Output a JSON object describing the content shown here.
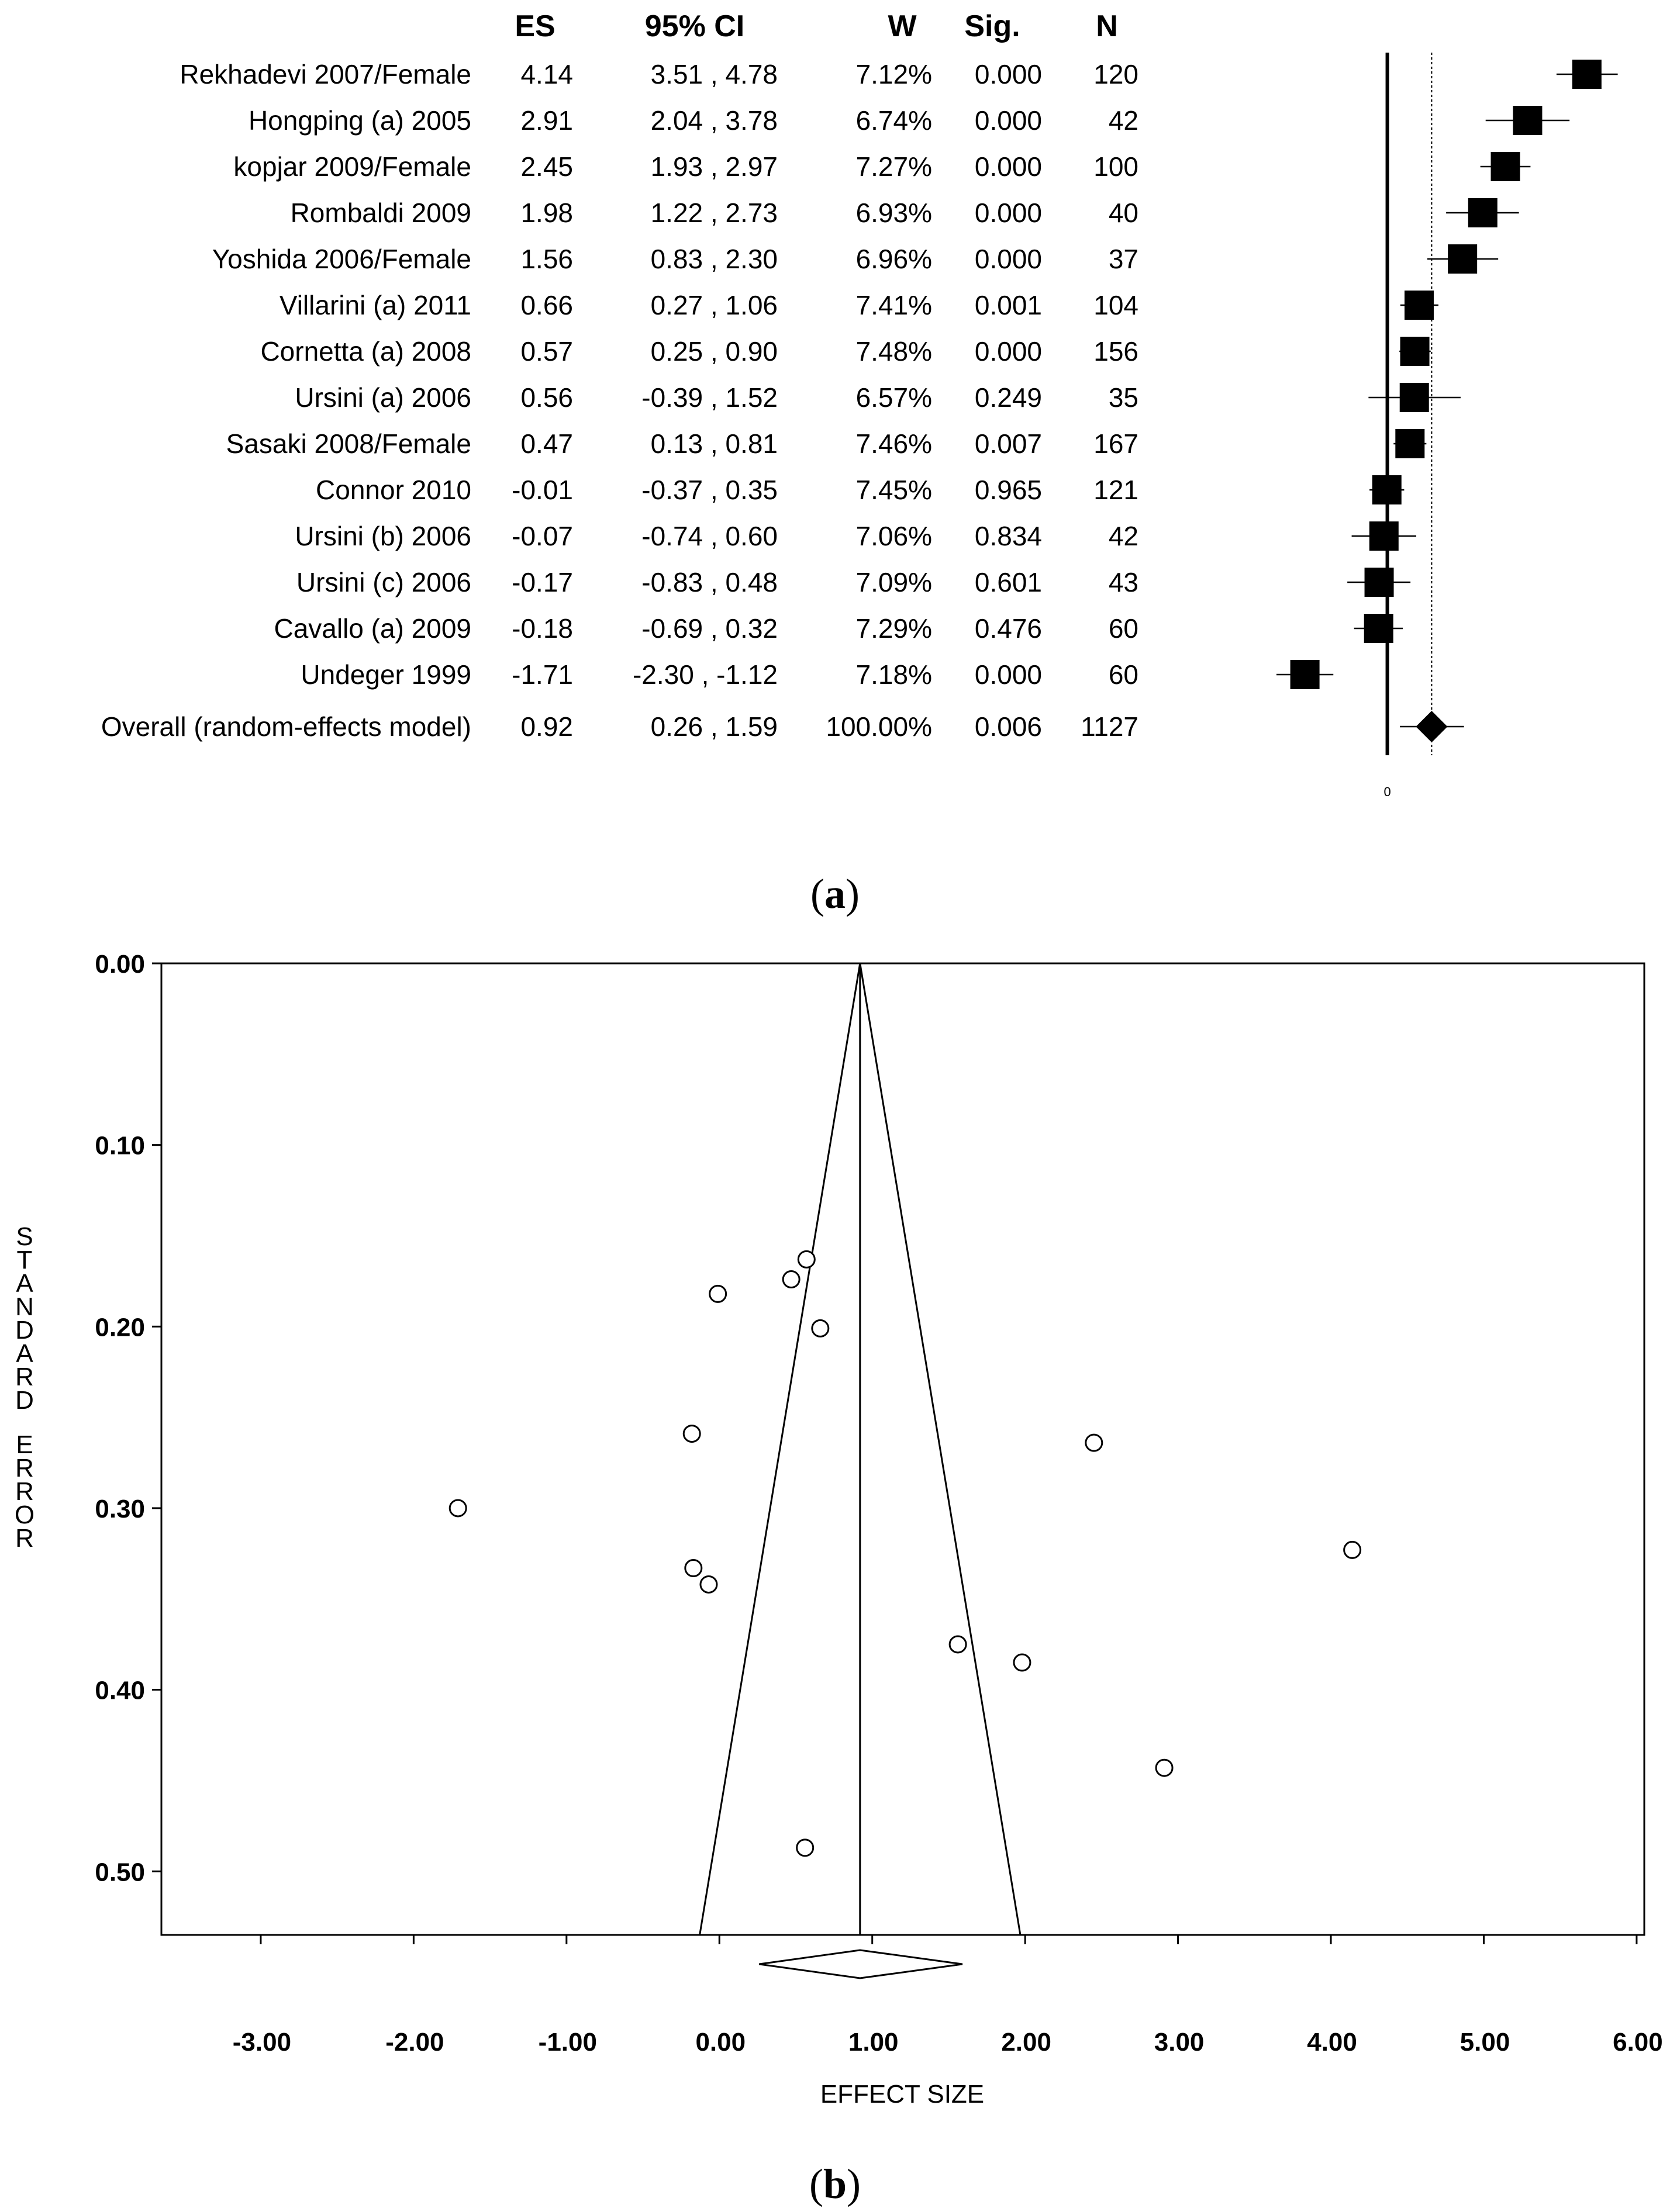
{
  "chart_data": [
    {
      "type": "forest",
      "panel_label": "a",
      "columns": [
        "ES",
        "95% CI",
        "W",
        "Sig.",
        "N"
      ],
      "studies": [
        {
          "study": "Rekhadevi 2007/Female",
          "es": "4.14",
          "ci": "3.51 , 4.78",
          "w": "7.12%",
          "sig": "0.000",
          "n": "120",
          "es_v": 4.14,
          "lo": 3.51,
          "hi": 4.78
        },
        {
          "study": "Hongping (a) 2005",
          "es": "2.91",
          "ci": "2.04 , 3.78",
          "w": "6.74%",
          "sig": "0.000",
          "n": "42",
          "es_v": 2.91,
          "lo": 2.04,
          "hi": 3.78
        },
        {
          "study": "kopjar 2009/Female",
          "es": "2.45",
          "ci": "1.93 , 2.97",
          "w": "7.27%",
          "sig": "0.000",
          "n": "100",
          "es_v": 2.45,
          "lo": 1.93,
          "hi": 2.97
        },
        {
          "study": "Rombaldi 2009",
          "es": "1.98",
          "ci": "1.22 , 2.73",
          "w": "6.93%",
          "sig": "0.000",
          "n": "40",
          "es_v": 1.98,
          "lo": 1.22,
          "hi": 2.73
        },
        {
          "study": "Yoshida 2006/Female",
          "es": "1.56",
          "ci": "0.83 , 2.30",
          "w": "6.96%",
          "sig": "0.000",
          "n": "37",
          "es_v": 1.56,
          "lo": 0.83,
          "hi": 2.3
        },
        {
          "study": "Villarini (a) 2011",
          "es": "0.66",
          "ci": "0.27 , 1.06",
          "w": "7.41%",
          "sig": "0.001",
          "n": "104",
          "es_v": 0.66,
          "lo": 0.27,
          "hi": 1.06
        },
        {
          "study": "Cornetta (a) 2008",
          "es": "0.57",
          "ci": "0.25 , 0.90",
          "w": "7.48%",
          "sig": "0.000",
          "n": "156",
          "es_v": 0.57,
          "lo": 0.25,
          "hi": 0.9
        },
        {
          "study": "Ursini (a) 2006",
          "es": "0.56",
          "ci": "-0.39 , 1.52",
          "w": "6.57%",
          "sig": "0.249",
          "n": "35",
          "es_v": 0.56,
          "lo": -0.39,
          "hi": 1.52
        },
        {
          "study": "Sasaki 2008/Female",
          "es": "0.47",
          "ci": "0.13 , 0.81",
          "w": "7.46%",
          "sig": "0.007",
          "n": "167",
          "es_v": 0.47,
          "lo": 0.13,
          "hi": 0.81
        },
        {
          "study": "Connor 2010",
          "es": "-0.01",
          "ci": "-0.37 , 0.35",
          "w": "7.45%",
          "sig": "0.965",
          "n": "121",
          "es_v": -0.01,
          "lo": -0.37,
          "hi": 0.35
        },
        {
          "study": "Ursini (b) 2006",
          "es": "-0.07",
          "ci": "-0.74 , 0.60",
          "w": "7.06%",
          "sig": "0.834",
          "n": "42",
          "es_v": -0.07,
          "lo": -0.74,
          "hi": 0.6
        },
        {
          "study": "Ursini (c) 2006",
          "es": "-0.17",
          "ci": "-0.83 , 0.48",
          "w": "7.09%",
          "sig": "0.601",
          "n": "43",
          "es_v": -0.17,
          "lo": -0.83,
          "hi": 0.48
        },
        {
          "study": "Cavallo (a) 2009",
          "es": "-0.18",
          "ci": "-0.69 , 0.32",
          "w": "7.29%",
          "sig": "0.476",
          "n": "60",
          "es_v": -0.18,
          "lo": -0.69,
          "hi": 0.32
        },
        {
          "study": "Undeger 1999",
          "es": "-1.71",
          "ci": "-2.30 , -1.12",
          "w": "7.18%",
          "sig": "0.000",
          "n": "60",
          "es_v": -1.71,
          "lo": -2.3,
          "hi": -1.12
        }
      ],
      "overall": {
        "study": "Overall (random-effects model)",
        "es": "0.92",
        "ci": "0.26 , 1.59",
        "w": "100.00%",
        "sig": "0.006",
        "n": "1127",
        "es_v": 0.92,
        "lo": 0.26,
        "hi": 1.59
      },
      "axis_zero_label": "0",
      "plot_xlim": [
        -2.7,
        4.7
      ]
    },
    {
      "type": "scatter",
      "subtype": "funnel",
      "panel_label": "b",
      "xlabel": "EFFECT SIZE",
      "ylabel": "STANDARD ERROR",
      "xlim": [
        -3.65,
        6.05
      ],
      "ylim": [
        0.0,
        0.535
      ],
      "x_ticks": [
        "-3.00",
        "-2.00",
        "-1.00",
        "0.00",
        "1.00",
        "2.00",
        "3.00",
        "4.00",
        "5.00",
        "6.00"
      ],
      "x_tick_values": [
        -3,
        -2,
        -1,
        0,
        1,
        2,
        3,
        4,
        5,
        6
      ],
      "y_ticks": [
        "0.00",
        "0.10",
        "0.20",
        "0.30",
        "0.40",
        "0.50"
      ],
      "y_tick_values": [
        0.0,
        0.1,
        0.2,
        0.3,
        0.4,
        0.5
      ],
      "points": [
        {
          "x": 0.57,
          "y": 0.163
        },
        {
          "x": 0.47,
          "y": 0.174
        },
        {
          "x": -0.01,
          "y": 0.182
        },
        {
          "x": 0.66,
          "y": 0.201
        },
        {
          "x": -0.18,
          "y": 0.259
        },
        {
          "x": 2.45,
          "y": 0.264
        },
        {
          "x": -1.71,
          "y": 0.3
        },
        {
          "x": 4.14,
          "y": 0.323
        },
        {
          "x": -0.17,
          "y": 0.333
        },
        {
          "x": -0.07,
          "y": 0.342
        },
        {
          "x": 1.56,
          "y": 0.375
        },
        {
          "x": 1.98,
          "y": 0.385
        },
        {
          "x": 2.91,
          "y": 0.443
        },
        {
          "x": 0.56,
          "y": 0.487
        }
      ],
      "summary_es": 0.92,
      "summary_ci": [
        0.26,
        1.59
      ],
      "funnel_bottom_se": 0.535
    }
  ],
  "captions": {
    "a": "a",
    "b": "b"
  }
}
